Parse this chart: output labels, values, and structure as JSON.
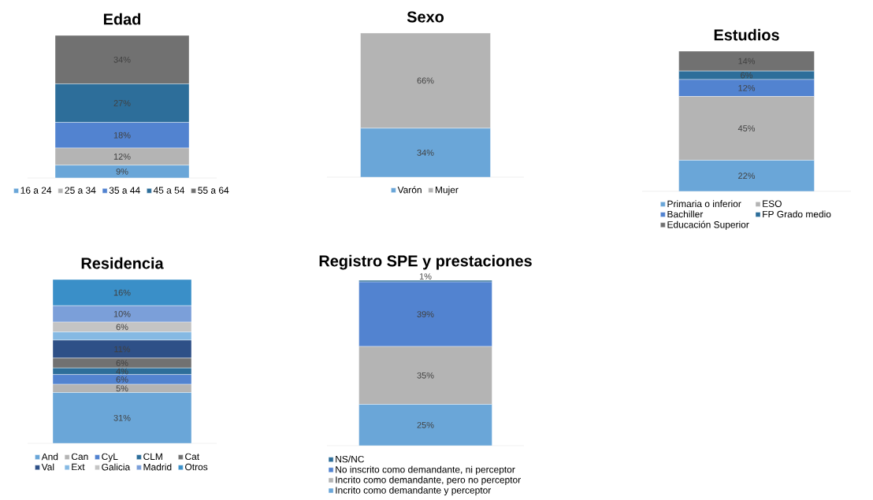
{
  "chart_data": [
    {
      "type": "bar",
      "title": "Edad",
      "stacked": true,
      "legend": "bottom",
      "categories": [
        null
      ],
      "series": [
        {
          "name": "16 a 24",
          "color": "#6aa6d8",
          "values": [
            9
          ],
          "value_labels": [
            "9%"
          ]
        },
        {
          "name": "25 a 34",
          "color": "#b4b4b4",
          "values": [
            12
          ],
          "value_labels": [
            "12%"
          ]
        },
        {
          "name": "35 a 44",
          "color": "#5283d0",
          "values": [
            18
          ],
          "value_labels": [
            "18%"
          ]
        },
        {
          "name": "45 a 54",
          "color": "#2d6e9a",
          "values": [
            27
          ],
          "value_labels": [
            "27%"
          ]
        },
        {
          "name": "55 a 64",
          "color": "#717171",
          "values": [
            34
          ],
          "value_labels": [
            "34%"
          ]
        }
      ]
    },
    {
      "type": "bar",
      "title": "Sexo",
      "stacked": true,
      "legend": "bottom",
      "categories": [
        null
      ],
      "series": [
        {
          "name": "Varón",
          "color": "#6aa6d8",
          "values": [
            34
          ],
          "value_labels": [
            "34%"
          ]
        },
        {
          "name": "Mujer",
          "color": "#b4b4b4",
          "values": [
            66
          ],
          "value_labels": [
            "66%"
          ]
        }
      ]
    },
    {
      "type": "bar",
      "title": "Estudios",
      "stacked": true,
      "legend": "bottom",
      "categories": [
        null
      ],
      "series": [
        {
          "name": "Primaria o inferior",
          "color": "#6aa6d8",
          "values": [
            22
          ],
          "value_labels": [
            "22%"
          ]
        },
        {
          "name": "ESO",
          "color": "#b4b4b4",
          "values": [
            45
          ],
          "value_labels": [
            "45%"
          ]
        },
        {
          "name": "Bachiller",
          "color": "#5283d0",
          "values": [
            12
          ],
          "value_labels": [
            "12%"
          ]
        },
        {
          "name": "FP Grado medio",
          "color": "#2d6e9a",
          "values": [
            6
          ],
          "value_labels": [
            "6%"
          ]
        },
        {
          "name": "Educación Superior",
          "color": "#717171",
          "values": [
            14
          ],
          "value_labels": [
            "14%"
          ]
        }
      ]
    },
    {
      "type": "bar",
      "title": "Residencia",
      "stacked": true,
      "legend": "bottom",
      "categories": [
        null
      ],
      "series": [
        {
          "name": "And",
          "color": "#6aa6d8",
          "values": [
            31
          ],
          "value_labels": [
            "31%"
          ]
        },
        {
          "name": "Can",
          "color": "#b4b4b4",
          "values": [
            5
          ],
          "value_labels": [
            "5%"
          ]
        },
        {
          "name": "CyL",
          "color": "#5283d0",
          "values": [
            6
          ],
          "value_labels": [
            "6%"
          ]
        },
        {
          "name": "CLM",
          "color": "#2d6e9a",
          "values": [
            4
          ],
          "value_labels": [
            "4%"
          ]
        },
        {
          "name": "Cat",
          "color": "#717171",
          "values": [
            6
          ],
          "value_labels": [
            "6%"
          ]
        },
        {
          "name": "Val",
          "color": "#2e5087",
          "values": [
            11
          ],
          "value_labels": [
            "11%"
          ]
        },
        {
          "name": "Ext",
          "color": "#85b9e3",
          "values": [
            5
          ],
          "value_labels": [
            null
          ]
        },
        {
          "name": "Galicia",
          "color": "#c4c4c4",
          "values": [
            6
          ],
          "value_labels": [
            "6%"
          ]
        },
        {
          "name": "Madrid",
          "color": "#7b9fd9",
          "values": [
            10
          ],
          "value_labels": [
            "10%"
          ]
        },
        {
          "name": "Otros",
          "color": "#3a8fc8",
          "values": [
            16
          ],
          "value_labels": [
            "16%"
          ]
        }
      ]
    },
    {
      "type": "bar",
      "title": "Registro SPE y prestaciones",
      "stacked": true,
      "legend": "bottom",
      "categories": [
        null
      ],
      "series": [
        {
          "name": "Incrito como demandante  y perceptor",
          "color": "#6aa6d8",
          "values": [
            25
          ],
          "value_labels": [
            "25%"
          ]
        },
        {
          "name": "Incrito como demandante, pero no perceptor",
          "color": "#b4b4b4",
          "values": [
            35
          ],
          "value_labels": [
            "35%"
          ]
        },
        {
          "name": "No inscrito como demandante, ni perceptor",
          "color": "#5283d0",
          "values": [
            39
          ],
          "value_labels": [
            "39%"
          ]
        },
        {
          "name": "NS/NC",
          "color": "#2d6e9a",
          "values": [
            1
          ],
          "value_labels": [
            "1%"
          ]
        }
      ]
    }
  ]
}
